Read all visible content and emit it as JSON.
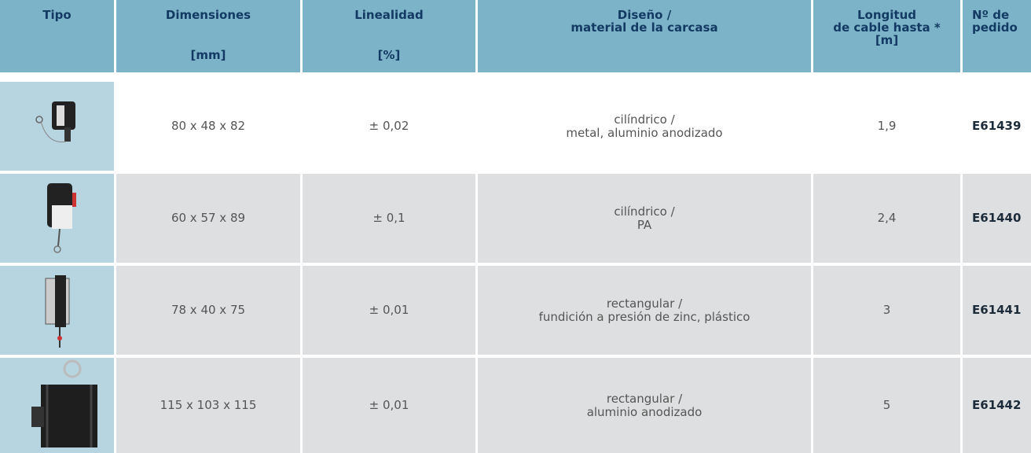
{
  "table": {
    "header": [
      [
        "Tipo"
      ],
      [
        "Dimensiones",
        "[mm]"
      ],
      [
        "Linealidad",
        "[%]"
      ],
      [
        "Diseño /",
        "material de la carcasa"
      ],
      [
        "Longitud",
        "de cable hasta *",
        "[m]"
      ],
      [
        "Nº de",
        "pedido"
      ]
    ],
    "rows": [
      {
        "dimensions": "80 x 48 x 82",
        "linearity": "± 0,02",
        "design": [
          "cilíndrico /",
          "metal, aluminio anodizado"
        ],
        "cable_length": "1,9",
        "order_no": "E61439"
      },
      {
        "dimensions": "60 x 57 x 89",
        "linearity": "± 0,1",
        "design": [
          "cilíndrico /",
          "PA"
        ],
        "cable_length": "2,4",
        "order_no": "E61440"
      },
      {
        "dimensions": "78 x 40 x 75",
        "linearity": "± 0,01",
        "design": [
          "rectangular /",
          "fundición a presión de zinc, plástico"
        ],
        "cable_length": "3",
        "order_no": "E61441"
      },
      {
        "dimensions": "115 x 103 x 115",
        "linearity": "± 0,01",
        "design": [
          "rectangular /",
          "aluminio anodizado"
        ],
        "cable_length": "5",
        "order_no": "E61442"
      }
    ]
  }
}
